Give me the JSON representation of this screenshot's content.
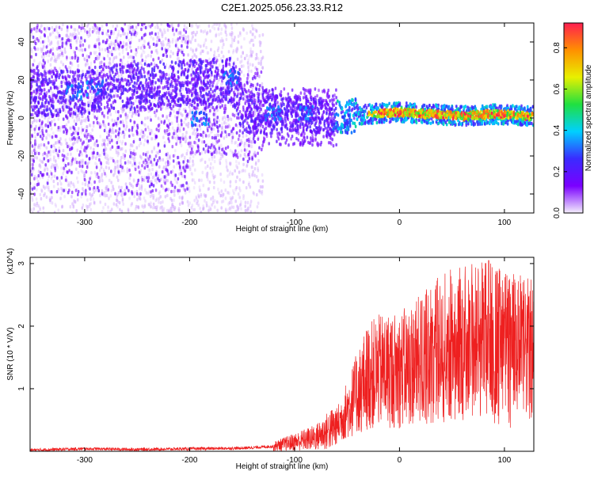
{
  "title": "C2E1.2025.056.23.33.R12",
  "chart_data": [
    {
      "type": "heatmap",
      "title": "C2E1.2025.056.23.33.R12",
      "xlabel": "Height of straight line (km)",
      "ylabel": "Frequency (Hz)",
      "xlim": [
        -352,
        128
      ],
      "ylim": [
        -50,
        50
      ],
      "xticks": [
        -300,
        -200,
        -100,
        0,
        100
      ],
      "yticks": [
        -40,
        -20,
        0,
        20,
        40
      ],
      "xtick_labels": [
        "-300",
        "-200",
        "-100",
        "0",
        "100"
      ],
      "ytick_labels": [
        "-40",
        "-20",
        "0",
        "20",
        "40"
      ],
      "colorbar": {
        "label": "Normalized spectral amplitude",
        "range": [
          0,
          0.92
        ],
        "ticks": [
          0.0,
          0.2,
          0.4,
          0.6,
          0.8
        ],
        "tick_labels": [
          "0.0",
          "0.2",
          "0.4",
          "0.6",
          "0.8"
        ],
        "colors": [
          "#f4eefc",
          "#7a00ff",
          "#3a2bff",
          "#00d0ff",
          "#20e040",
          "#e8f000",
          "#ff9000",
          "#ff1e50"
        ]
      },
      "ridge": [
        {
          "x": -310,
          "y": 13
        },
        {
          "x": -290,
          "y": 15
        },
        {
          "x": -160,
          "y": 20
        },
        {
          "x": -150,
          "y": 4
        },
        {
          "x": -100,
          "y": 2
        },
        {
          "x": -60,
          "y": 0
        },
        {
          "x": -30,
          "y": 2
        },
        {
          "x": 0,
          "y": 3
        },
        {
          "x": 30,
          "y": 2
        },
        {
          "x": 60,
          "y": 1
        },
        {
          "x": 90,
          "y": 2
        },
        {
          "x": 128,
          "y": 1
        }
      ]
    },
    {
      "type": "line",
      "xlabel": "Height of straight line (km)",
      "ylabel": "SNR (10 * V/V)",
      "y_multiplier": "(x10^4)",
      "xlim": [
        -352,
        128
      ],
      "ylim": [
        0,
        3.1
      ],
      "xticks": [
        -300,
        -200,
        -100,
        0,
        100
      ],
      "yticks": [
        1,
        2,
        3
      ],
      "xtick_labels": [
        "-300",
        "-200",
        "-100",
        "0",
        "100"
      ],
      "ytick_labels": [
        "1",
        "2",
        "3"
      ],
      "series_color": "#ee2020",
      "envelope": [
        {
          "x": -352,
          "y": 0.02
        },
        {
          "x": -300,
          "y": 0.04
        },
        {
          "x": -250,
          "y": 0.03
        },
        {
          "x": -200,
          "y": 0.04
        },
        {
          "x": -150,
          "y": 0.05
        },
        {
          "x": -120,
          "y": 0.08
        },
        {
          "x": -100,
          "y": 0.15
        },
        {
          "x": -80,
          "y": 0.22
        },
        {
          "x": -60,
          "y": 0.4
        },
        {
          "x": -45,
          "y": 0.8
        },
        {
          "x": -30,
          "y": 1.2
        },
        {
          "x": -15,
          "y": 1.3
        },
        {
          "x": 0,
          "y": 1.3
        },
        {
          "x": 20,
          "y": 1.45
        },
        {
          "x": 40,
          "y": 1.65
        },
        {
          "x": 60,
          "y": 1.75
        },
        {
          "x": 80,
          "y": 1.85
        },
        {
          "x": 100,
          "y": 1.7
        },
        {
          "x": 128,
          "y": 1.6
        }
      ],
      "peak": {
        "x": 85,
        "y": 3.05
      }
    }
  ]
}
